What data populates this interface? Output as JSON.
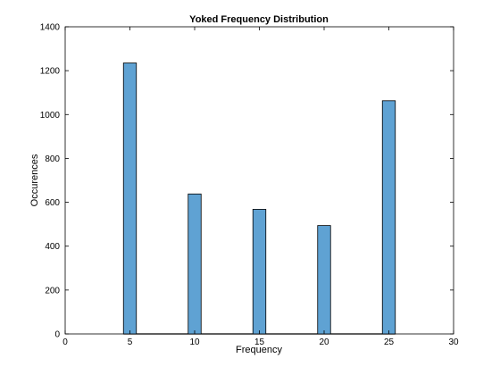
{
  "chart_data": {
    "type": "bar",
    "title": "Yoked Frequency Distribution",
    "xlabel": "Frequency",
    "ylabel": "Occurences",
    "xlim": [
      0,
      30
    ],
    "ylim": [
      0,
      1400
    ],
    "xticks": [
      0,
      5,
      10,
      15,
      20,
      25,
      30
    ],
    "yticks": [
      0,
      200,
      400,
      600,
      800,
      1000,
      1200,
      1400
    ],
    "bin_width": 1,
    "categories": [
      5,
      10,
      15,
      20,
      25
    ],
    "values": [
      1235,
      638,
      568,
      494,
      1063
    ],
    "grid": false,
    "colors": {
      "bar_fill": "#5fa2d3",
      "bar_edge": "#000000",
      "axis": "#000000",
      "background": "#ffffff"
    }
  }
}
